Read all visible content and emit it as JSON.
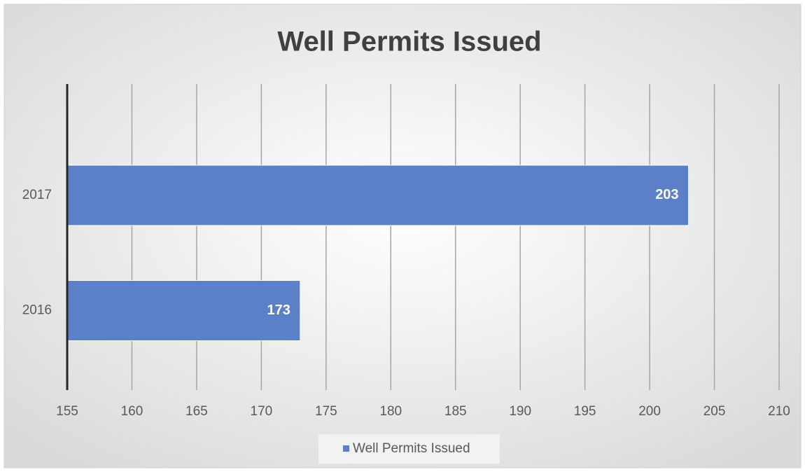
{
  "chart_data": {
    "type": "bar",
    "orientation": "horizontal",
    "title": "Well Permits Issued",
    "categories": [
      "2016",
      "2017"
    ],
    "series": [
      {
        "name": "Well Permits Issued",
        "color": "#5b80c8",
        "values": [
          173,
          203
        ]
      }
    ],
    "xlim": [
      155,
      210
    ],
    "xticks": [
      155,
      160,
      165,
      170,
      175,
      180,
      185,
      190,
      195,
      200,
      205,
      210
    ],
    "grid": true,
    "legend": "bottom"
  }
}
